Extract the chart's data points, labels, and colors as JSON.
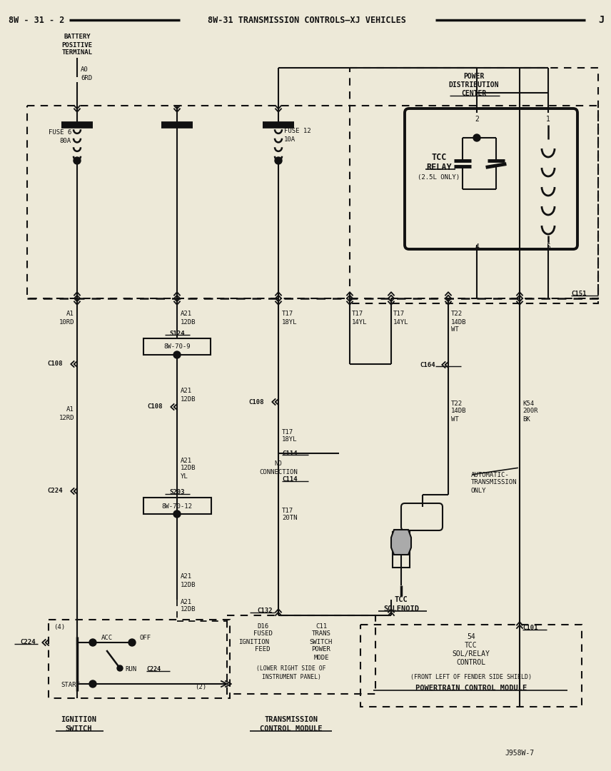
{
  "bg": "#ede9d8",
  "lc": "#111111",
  "fig_w": 8.56,
  "fig_h": 10.8,
  "dpi": 100,
  "header": "8W-31 TRANSMISSION CONTROLS—XJ VEHICLES",
  "header_left": "8W - 31 - 2",
  "header_right": "J",
  "footer_ref": "J958W-7"
}
